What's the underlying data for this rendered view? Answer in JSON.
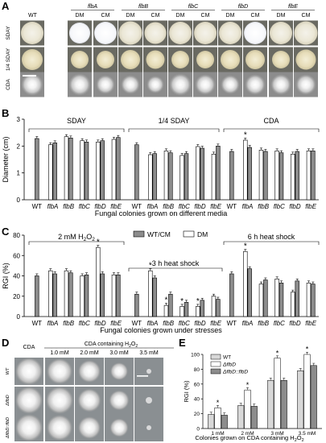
{
  "figure": {
    "panel_labels": [
      "A",
      "B",
      "C",
      "D",
      "E"
    ]
  },
  "panelA": {
    "wt_label": "WT",
    "strain_labels": [
      "flbA",
      "flbB",
      "flbC",
      "flbD",
      "flbE"
    ],
    "sub_labels": [
      "DM",
      "CM"
    ],
    "row_labels": [
      "SDAY",
      "1/4 SDAY",
      "CDA"
    ]
  },
  "chart_data": [
    {
      "type": "bar",
      "panel": "B",
      "ylabel": "Diameter (cm)",
      "xlabel": "Fungal colonies grown on different media",
      "ylim": [
        0,
        3
      ],
      "yticks": [
        "0",
        "1",
        "2",
        "3"
      ],
      "categories": [
        "WT",
        "flbA",
        "flbB",
        "flbC",
        "flbD",
        "flbE"
      ],
      "group_labels": [
        "SDAY",
        "1/4 SDAY",
        "CDA"
      ],
      "series_colors": {
        "gray": "#8c8c8c",
        "white": "#ffffff"
      },
      "groups": [
        {
          "name": "SDAY",
          "wt": 2.28,
          "pairs": [
            [
              2.05,
              2.12
            ],
            [
              2.35,
              2.3
            ],
            [
              2.2,
              2.15
            ],
            [
              2.15,
              2.2
            ],
            [
              2.25,
              2.32
            ]
          ]
        },
        {
          "name": "1/4 SDAY",
          "wt": 2.05,
          "pairs": [
            [
              1.68,
              1.72
            ],
            [
              1.82,
              1.75
            ],
            [
              1.65,
              1.72
            ],
            [
              1.98,
              1.92
            ],
            [
              1.7,
              2.0
            ]
          ]
        },
        {
          "name": "CDA",
          "wt": 1.8,
          "pairs": [
            [
              2.22,
              1.95
            ],
            [
              1.85,
              1.8
            ],
            [
              1.82,
              1.75
            ],
            [
              1.7,
              1.8
            ],
            [
              1.82,
              1.82
            ]
          ]
        }
      ],
      "significant": [
        {
          "group": 2,
          "strain": 0,
          "bar": "DM"
        }
      ]
    },
    {
      "type": "bar",
      "panel": "C",
      "ylabel": "RGI (%)",
      "xlabel": "Fungal colonies grown under stresses",
      "ylim": [
        0,
        80
      ],
      "yticks": [
        "0",
        "20",
        "40",
        "60",
        "80"
      ],
      "categories": [
        "WT",
        "flbA",
        "flbB",
        "flbC",
        "flbD",
        "flbE"
      ],
      "legend": [
        "WT/CM",
        "DM"
      ],
      "group_labels": [
        "2 mM H",
        "2",
        "O",
        "2",
        "3 h heat shock",
        "6 h heat shock"
      ],
      "groups": [
        {
          "name": "H2O2",
          "wt": 40,
          "pairs": [
            [
              45,
              42
            ],
            [
              45,
              43
            ],
            [
              40,
              41
            ],
            [
              68,
              42
            ],
            [
              41,
              41
            ]
          ]
        },
        {
          "name": "3 h heat shock",
          "wt": 22,
          "pairs": [
            [
              45,
              38
            ],
            [
              11,
              22
            ],
            [
              10,
              14
            ],
            [
              10,
              16
            ],
            [
              20,
              17
            ]
          ]
        },
        {
          "name": "6 h heat shock",
          "wt": 42,
          "pairs": [
            [
              64,
              47
            ],
            [
              32,
              36
            ],
            [
              37,
              33
            ],
            [
              24,
              35
            ],
            [
              33,
              32
            ]
          ]
        }
      ],
      "significant": [
        {
          "group": 0,
          "strain": 3,
          "bar": "DM"
        },
        {
          "group": 1,
          "strain": 0,
          "bar": "DM"
        },
        {
          "group": 1,
          "strain": 1,
          "bar": "DM"
        },
        {
          "group": 1,
          "strain": 2,
          "bar": "DM"
        },
        {
          "group": 1,
          "strain": 3,
          "bar": "DM"
        },
        {
          "group": 2,
          "strain": 0,
          "bar": "DM"
        }
      ]
    },
    {
      "type": "bar",
      "panel": "E",
      "ylabel": "RGI (%)",
      "xlabel_prefix": "Colonies grown on CDA containing H",
      "xlabel_sub": "2",
      "xlabel_mid": "O",
      "ylim": [
        0,
        100
      ],
      "yticks": [
        "0",
        "20",
        "40",
        "60",
        "80",
        "100"
      ],
      "categories": [
        "1 mM",
        "2 mM",
        "3 mM",
        "3.5 mM"
      ],
      "series": [
        {
          "name": "WT",
          "color": "#d8d8d8",
          "values": [
            19,
            31,
            65,
            78
          ]
        },
        {
          "name": "ΔflbD",
          "color": "#ffffff",
          "values": [
            28,
            52,
            95,
            100
          ]
        },
        {
          "name": "ΔflbD::flbD",
          "color": "#8c8c8c",
          "values": [
            18,
            30,
            65,
            85
          ]
        }
      ],
      "significant": [
        0,
        1,
        2,
        3
      ]
    }
  ],
  "panelD": {
    "title_cda": "CDA",
    "title_h2o2_prefix": "CDA containing H",
    "title_h2o2_sub": "2",
    "title_h2o2_mid": "O",
    "concentrations": [
      "1.0 mM",
      "2.0 mM",
      "3.0 mM",
      "3.5 mM"
    ],
    "row_labels": [
      "WT",
      "ΔflbD",
      "ΔflbD::flbD"
    ]
  }
}
